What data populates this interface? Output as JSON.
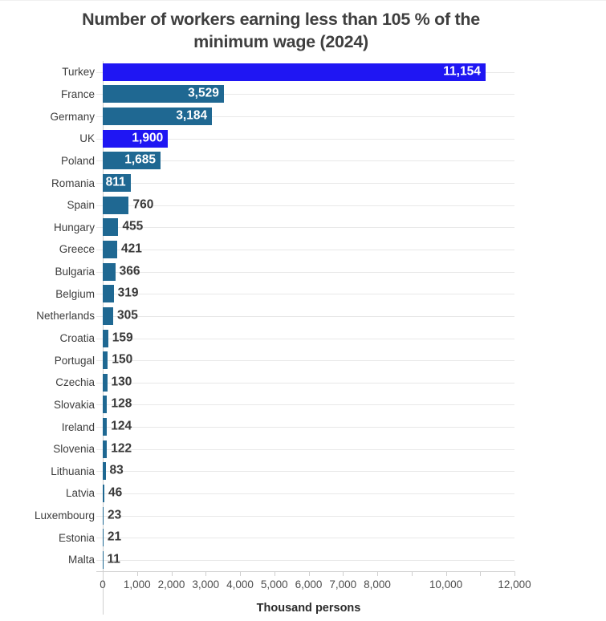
{
  "title": {
    "line1": "Number of workers earning less than 105 % of the",
    "line2": "minimum wage (2024)"
  },
  "chart_data": {
    "type": "bar",
    "orientation": "horizontal",
    "xlabel": "Thousand persons",
    "xlim": [
      0,
      12000
    ],
    "grid": "horizontal-row-lines",
    "series": [
      {
        "label": "Turkey",
        "value": 11154,
        "display": "11,154",
        "highlight": true,
        "label_inside": true
      },
      {
        "label": "France",
        "value": 3529,
        "display": "3,529",
        "highlight": false,
        "label_inside": true
      },
      {
        "label": "Germany",
        "value": 3184,
        "display": "3,184",
        "highlight": false,
        "label_inside": true
      },
      {
        "label": "UK",
        "value": 1900,
        "display": "1,900",
        "highlight": true,
        "label_inside": true
      },
      {
        "label": "Poland",
        "value": 1685,
        "display": "1,685",
        "highlight": false,
        "label_inside": true
      },
      {
        "label": "Romania",
        "value": 811,
        "display": "811",
        "highlight": false,
        "label_inside": true
      },
      {
        "label": "Spain",
        "value": 760,
        "display": "760",
        "highlight": false,
        "label_inside": false
      },
      {
        "label": "Hungary",
        "value": 455,
        "display": "455",
        "highlight": false,
        "label_inside": false
      },
      {
        "label": "Greece",
        "value": 421,
        "display": "421",
        "highlight": false,
        "label_inside": false
      },
      {
        "label": "Bulgaria",
        "value": 366,
        "display": "366",
        "highlight": false,
        "label_inside": false
      },
      {
        "label": "Belgium",
        "value": 319,
        "display": "319",
        "highlight": false,
        "label_inside": false
      },
      {
        "label": "Netherlands",
        "value": 305,
        "display": "305",
        "highlight": false,
        "label_inside": false
      },
      {
        "label": "Croatia",
        "value": 159,
        "display": "159",
        "highlight": false,
        "label_inside": false
      },
      {
        "label": "Portugal",
        "value": 150,
        "display": "150",
        "highlight": false,
        "label_inside": false
      },
      {
        "label": "Czechia",
        "value": 130,
        "display": "130",
        "highlight": false,
        "label_inside": false
      },
      {
        "label": "Slovakia",
        "value": 128,
        "display": "128",
        "highlight": false,
        "label_inside": false
      },
      {
        "label": "Ireland",
        "value": 124,
        "display": "124",
        "highlight": false,
        "label_inside": false
      },
      {
        "label": "Slovenia",
        "value": 122,
        "display": "122",
        "highlight": false,
        "label_inside": false
      },
      {
        "label": "Lithuania",
        "value": 83,
        "display": "83",
        "highlight": false,
        "label_inside": false
      },
      {
        "label": "Latvia",
        "value": 46,
        "display": "46",
        "highlight": false,
        "label_inside": false
      },
      {
        "label": "Luxembourg",
        "value": 23,
        "display": "23",
        "highlight": false,
        "label_inside": false
      },
      {
        "label": "Estonia",
        "value": 21,
        "display": "21",
        "highlight": false,
        "label_inside": false
      },
      {
        "label": "Malta",
        "value": 11,
        "display": "11",
        "highlight": false,
        "label_inside": false
      }
    ],
    "x_ticks": [
      {
        "value": 0,
        "label": "0"
      },
      {
        "value": 1000,
        "label": "1,000"
      },
      {
        "value": 2000,
        "label": "2,000"
      },
      {
        "value": 3000,
        "label": "3,000"
      },
      {
        "value": 4000,
        "label": "4,000"
      },
      {
        "value": 5000,
        "label": "5,000"
      },
      {
        "value": 6000,
        "label": "6,000"
      },
      {
        "value": 7000,
        "label": "7,000"
      },
      {
        "value": 8000,
        "label": "8,000"
      },
      {
        "value": 9000,
        "label": ""
      },
      {
        "value": 10000,
        "label": "10,000"
      },
      {
        "value": 11000,
        "label": ""
      },
      {
        "value": 12000,
        "label": "12,000"
      }
    ],
    "colors": {
      "bar_default": "#1f6892",
      "bar_highlight": "#1f16f3",
      "value_label_inside": "#ffffff",
      "value_label_outside": "#383838",
      "gridline": "#e8e8e8",
      "axis": "#cfcfcf"
    }
  }
}
